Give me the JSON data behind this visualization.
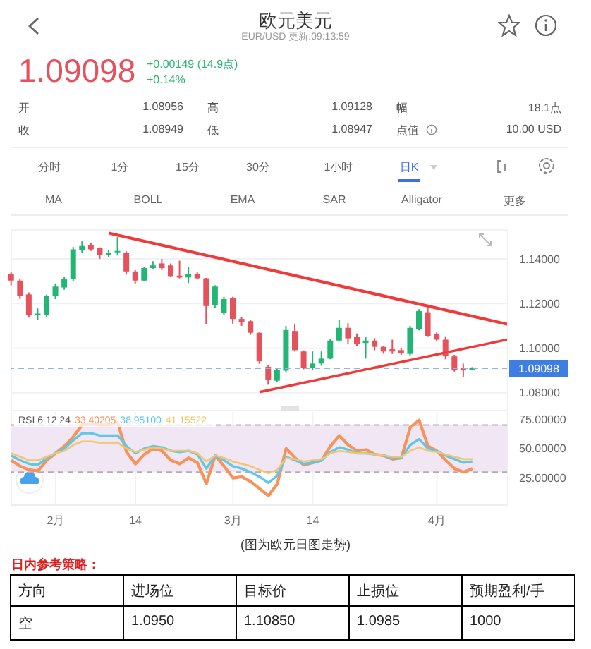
{
  "chart_data": [
    {
      "type": "candlestick",
      "title": "欧元美元",
      "subtitle": "EUR/USD 更新:09:13:59",
      "categories": [
        null,
        null,
        null,
        null,
        null,
        "2月",
        null,
        null,
        null,
        null,
        null,
        null,
        null,
        null,
        "14",
        null,
        null,
        null,
        null,
        null,
        null,
        null,
        null,
        null,
        null,
        "3月",
        null,
        null,
        null,
        null,
        null,
        null,
        null,
        null,
        "14",
        null,
        null,
        null,
        null,
        null,
        null,
        null,
        null,
        null,
        null,
        null,
        null,
        null,
        "4月",
        null,
        null,
        null,
        null,
        null,
        null,
        null,
        null
      ],
      "ohlc": [
        [
          1.1334,
          1.134,
          1.1282,
          1.1303
        ],
        [
          1.1303,
          1.131,
          1.122,
          1.1234
        ],
        [
          1.1241,
          1.125,
          1.1137,
          1.1148
        ],
        [
          1.1148,
          1.1178,
          1.1127,
          1.1155
        ],
        [
          1.1148,
          1.124,
          1.114,
          1.1234
        ],
        [
          1.1234,
          1.129,
          1.122,
          1.1276
        ],
        [
          1.1272,
          1.132,
          1.1262,
          1.1309
        ],
        [
          1.1309,
          1.1454,
          1.13,
          1.1443
        ],
        [
          1.1441,
          1.1479,
          1.1427,
          1.1458
        ],
        [
          1.1462,
          1.147,
          1.1436,
          1.1443
        ],
        [
          1.1448,
          1.1452,
          1.14,
          1.1417
        ],
        [
          1.1417,
          1.144,
          1.141,
          1.1427
        ],
        [
          1.1432,
          1.1499,
          1.1417,
          1.1436
        ],
        [
          1.1427,
          1.1434,
          1.133,
          1.1344
        ],
        [
          1.1344,
          1.135,
          1.129,
          1.1303
        ],
        [
          1.1303,
          1.1365,
          1.13,
          1.1359
        ],
        [
          1.1359,
          1.139,
          1.1355,
          1.1371
        ],
        [
          1.138,
          1.14,
          1.135,
          1.1359
        ],
        [
          1.1371,
          1.138,
          1.132,
          1.1323
        ],
        [
          1.1325,
          1.1392,
          1.1313,
          1.1317
        ],
        [
          1.1317,
          1.1365,
          1.1292,
          1.1334
        ],
        [
          1.1334,
          1.134,
          1.1308,
          1.1313
        ],
        [
          1.1313,
          1.1315,
          1.1106,
          1.1189
        ],
        [
          1.1193,
          1.1282,
          1.118,
          1.1276
        ],
        [
          1.1158,
          1.123,
          1.115,
          1.122
        ],
        [
          1.1226,
          1.123,
          1.111,
          1.1131
        ],
        [
          1.1131,
          1.114,
          1.11,
          1.1117
        ],
        [
          1.1121,
          1.1125,
          1.106,
          1.1069
        ],
        [
          1.1069,
          1.107,
          1.093,
          1.0941
        ],
        [
          1.0916,
          1.0925,
          1.0836,
          1.0858
        ],
        [
          1.0854,
          1.091,
          1.085,
          1.0903
        ],
        [
          1.0899,
          1.11,
          1.089,
          1.1081
        ],
        [
          1.1077,
          1.111,
          1.0985,
          1.0991
        ],
        [
          1.0985,
          1.099,
          1.0905,
          1.091
        ],
        [
          1.091,
          1.0985,
          1.09,
          1.0931
        ],
        [
          1.0931,
          1.0985,
          1.0921,
          1.0953
        ],
        [
          1.0953,
          1.104,
          1.095,
          1.1034
        ],
        [
          1.1034,
          1.1125,
          1.103,
          1.1091
        ],
        [
          1.1091,
          1.1112,
          1.1017,
          1.1044
        ],
        [
          1.1049,
          1.1066,
          1.101,
          1.1017
        ],
        [
          1.1023,
          1.1049,
          1.0953,
          1.1034
        ],
        [
          1.1034,
          1.1045,
          1.099,
          1.1006
        ],
        [
          1.1006,
          1.101,
          1.0975,
          1.0985
        ],
        [
          1.0995,
          1.1038,
          1.0974,
          1.0985
        ],
        [
          1.0991,
          1.1,
          1.097,
          1.0978
        ],
        [
          1.0974,
          1.11,
          1.0965,
          1.1091
        ],
        [
          1.1085,
          1.1175,
          1.108,
          1.1166
        ],
        [
          1.1161,
          1.1185,
          1.105,
          1.1055
        ],
        [
          1.1063,
          1.107,
          1.103,
          1.1038
        ],
        [
          1.1038,
          1.105,
          1.095,
          1.0963
        ],
        [
          1.0963,
          1.097,
          1.0895,
          1.09
        ],
        [
          1.091,
          1.0931,
          1.0872,
          1.09
        ],
        [
          1.0904,
          1.0915,
          1.09,
          1.091
        ],
        null,
        null,
        null,
        null
      ],
      "series": [
        {
          "type": "line",
          "color": "#f03a3a",
          "values": [
            null,
            null,
            null,
            null,
            null,
            null,
            null,
            null,
            null,
            null,
            null,
            1.1516,
            null,
            null,
            null,
            null,
            null,
            null,
            null,
            null,
            null,
            null,
            null,
            null,
            null,
            null,
            null,
            null,
            null,
            null,
            null,
            null,
            null,
            null,
            null,
            null,
            null,
            null,
            null,
            null,
            null,
            null,
            null,
            null,
            null,
            null,
            null,
            null,
            null,
            null,
            null,
            null,
            null,
            null,
            null,
            null,
            1.1107
          ]
        },
        {
          "type": "line",
          "color": "#f03a3a",
          "values": [
            null,
            null,
            null,
            null,
            null,
            null,
            null,
            null,
            null,
            null,
            null,
            null,
            null,
            null,
            null,
            null,
            null,
            null,
            null,
            null,
            null,
            null,
            null,
            null,
            null,
            null,
            null,
            null,
            1.0803,
            null,
            null,
            null,
            null,
            null,
            null,
            null,
            null,
            null,
            null,
            null,
            null,
            null,
            null,
            null,
            null,
            null,
            null,
            null,
            null,
            null,
            null,
            null,
            null,
            null,
            null,
            null,
            1.1039
          ]
        }
      ],
      "ylim": [
        1.072,
        1.153
      ],
      "yticks": [
        {
          "value": 1.08,
          "label": "1.08000"
        },
        {
          "value": 1.1,
          "label": "1.10000"
        },
        {
          "value": 1.12,
          "label": "1.12000"
        },
        {
          "value": 1.14,
          "label": "1.14000"
        }
      ],
      "ref_lines": [
        {
          "axis": "y",
          "value": 1.09098,
          "label": "1.09098",
          "color": "#8fb4ec",
          "line_style": "dashed"
        }
      ],
      "grid": true,
      "tick_labels": "y",
      "annotations": [
        "1.09098",
        "+0.00149 (14.9点)",
        "+0.14%",
        "开",
        "1.08956",
        "高",
        "1.09128",
        "幅",
        "18.1点",
        "收",
        "1.08949",
        "低",
        "1.08947",
        "点值",
        "10.00 USD",
        "分时",
        "1分",
        "15分",
        "30分",
        "1小时",
        "日K",
        "MA",
        "BOLL",
        "EMA",
        "SAR",
        "Alligator",
        "更多"
      ]
    },
    {
      "type": "line",
      "categories": [
        null,
        null,
        null,
        null,
        null,
        "2月",
        null,
        null,
        null,
        null,
        null,
        null,
        null,
        null,
        "14",
        null,
        null,
        null,
        null,
        null,
        null,
        null,
        null,
        null,
        null,
        "3月",
        null,
        null,
        null,
        null,
        null,
        null,
        null,
        null,
        "14",
        null,
        null,
        null,
        null,
        null,
        null,
        null,
        null,
        null,
        null,
        null,
        null,
        null,
        "4月",
        null,
        null,
        null,
        null,
        null,
        null,
        null,
        null
      ],
      "legend_title": "RSI 6 12 24",
      "legend": "top left",
      "series": [
        {
          "name": "33.40205",
          "color": "#f7925a",
          "values": [
            40,
            35,
            32,
            31,
            40,
            46,
            52,
            60,
            70,
            71,
            70,
            70,
            72,
            47,
            37,
            45,
            50,
            48,
            40,
            37,
            42,
            38,
            20,
            44,
            35,
            25,
            26,
            22,
            16,
            10,
            20,
            50,
            42,
            36,
            38,
            40,
            52,
            61,
            53,
            48,
            49,
            45,
            44,
            41,
            42,
            68,
            74,
            52,
            48,
            40,
            33,
            30,
            33,
            null,
            null,
            null,
            null
          ]
        },
        {
          "name": "38.95100",
          "color": "#5ec8e6",
          "values": [
            44,
            40,
            37,
            36,
            42,
            46,
            50,
            57,
            63,
            63,
            61,
            61,
            61,
            52,
            46,
            50,
            52,
            51,
            48,
            47,
            48,
            45,
            33,
            44,
            40,
            35,
            33,
            30,
            26,
            21,
            27,
            43,
            40,
            37,
            38,
            40,
            47,
            51,
            49,
            46,
            46,
            45,
            44,
            42,
            42,
            53,
            58,
            50,
            48,
            44,
            41,
            38,
            39,
            null,
            null,
            null,
            null
          ]
        },
        {
          "name": "41.15522",
          "color": "#f5c56e",
          "values": [
            46,
            43,
            40,
            40,
            43,
            46,
            48,
            53,
            56,
            56,
            55,
            55,
            55,
            50,
            47,
            49,
            51,
            50,
            48,
            48,
            48,
            46,
            39,
            44,
            42,
            39,
            37,
            35,
            32,
            29,
            32,
            42,
            41,
            39,
            40,
            41,
            46,
            48,
            47,
            46,
            46,
            45,
            44,
            43,
            43,
            48,
            51,
            48,
            47,
            45,
            43,
            41,
            41,
            null,
            null,
            null,
            null
          ]
        }
      ],
      "ylim": [
        2,
        81
      ],
      "yticks": [
        {
          "value": 25,
          "label": "25.00000"
        },
        {
          "value": 50,
          "label": "50.00000"
        },
        {
          "value": 75,
          "label": "75.00000"
        }
      ],
      "ref_lines": [
        {
          "axis": "y",
          "value": 70,
          "color": "#b8a9b8",
          "line_style": "dashed"
        },
        {
          "axis": "y",
          "value": 30,
          "color": "#b8a9b8",
          "line_style": "dashed"
        }
      ],
      "bands": [
        {
          "axis": "y",
          "from": 30,
          "to": 70,
          "color": "#f1e6f4"
        }
      ],
      "grid": "x",
      "annotations": [
        "(图为欧元日图走势)",
        "日内参考策略：",
        "方向",
        "进场位",
        "目标价",
        "止损位",
        "预期盈利/手",
        "空",
        "1.0950",
        "1.10850",
        "1.0985",
        "1000"
      ]
    }
  ]
}
